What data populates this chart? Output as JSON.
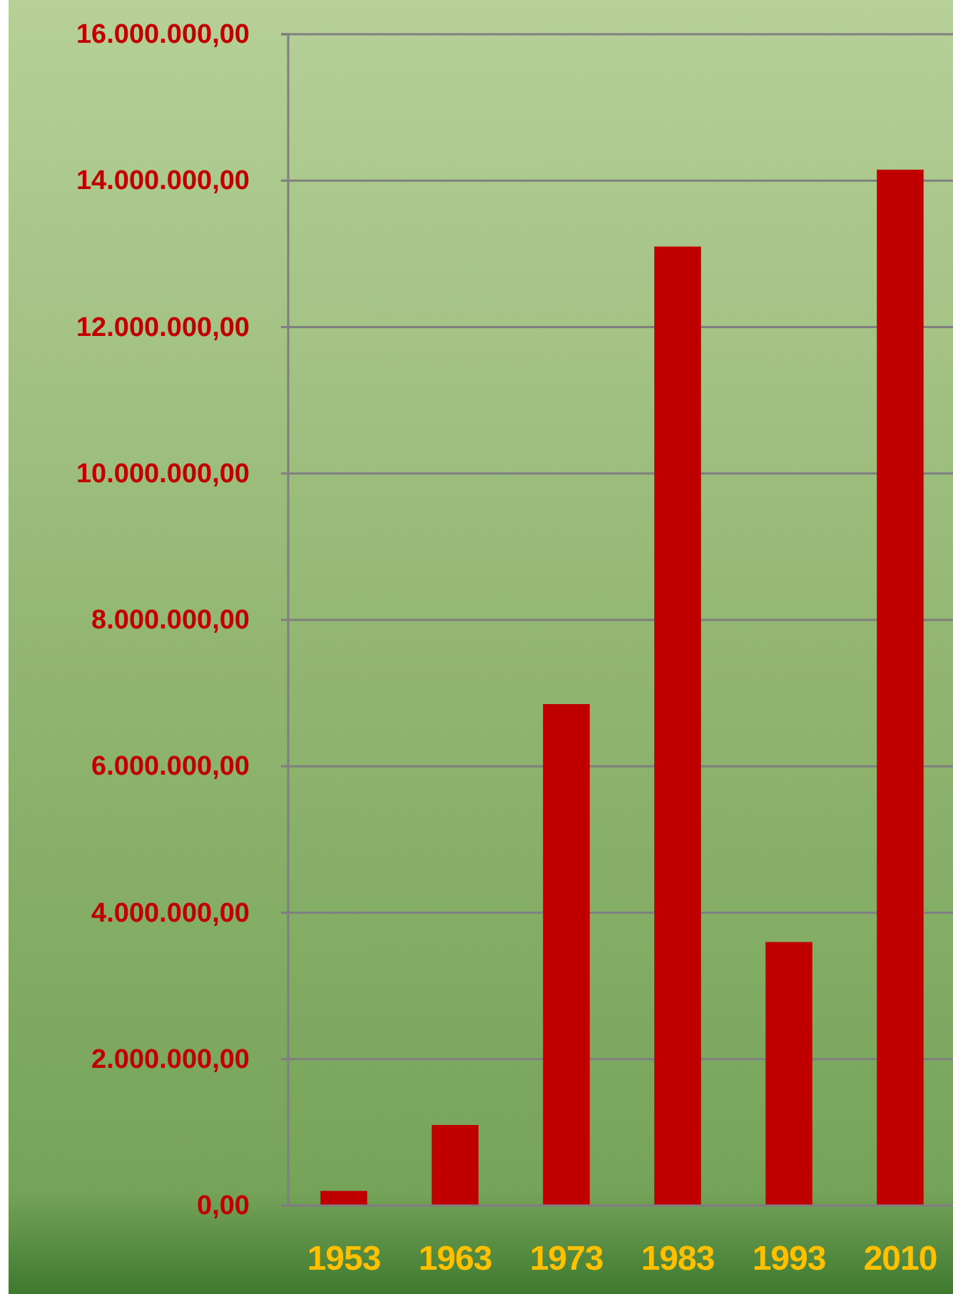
{
  "chart_data": {
    "type": "bar",
    "categories": [
      "1953",
      "1963",
      "1973",
      "1983",
      "1993",
      "2010"
    ],
    "series": [
      {
        "color": "#c00000",
        "values": [
          200000,
          1100000,
          6850000,
          13100000,
          3600000,
          14150000
        ]
      }
    ],
    "ylim": [
      0,
      16000000
    ],
    "yticks": [
      {
        "value": 0,
        "label": "0,00"
      },
      {
        "value": 2000000,
        "label": "2.000.000,00"
      },
      {
        "value": 4000000,
        "label": "4.000.000,00"
      },
      {
        "value": 6000000,
        "label": "6.000.000,00"
      },
      {
        "value": 8000000,
        "label": "8.000.000,00"
      },
      {
        "value": 10000000,
        "label": "10.000.000,00"
      },
      {
        "value": 12000000,
        "label": "12.000.000,00"
      },
      {
        "value": 14000000,
        "label": "14.000.000,00"
      },
      {
        "value": 16000000,
        "label": "16.000.000,00"
      }
    ],
    "grid": "y"
  }
}
